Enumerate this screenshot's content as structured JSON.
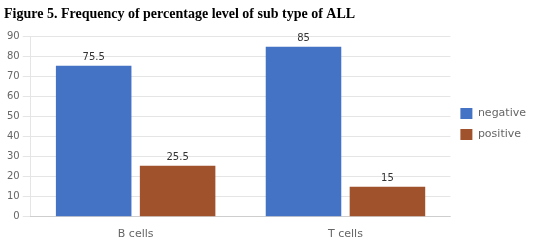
{
  "chart_data": {
    "type": "bar",
    "title": "Figure 5. Frequency of percentage level of sub type of ALL",
    "categories": [
      "B cells",
      "T cells"
    ],
    "series": [
      {
        "name": "negative",
        "color": "#4472C4",
        "values": [
          75.5,
          85
        ]
      },
      {
        "name": "positive",
        "color": "#A0522D",
        "values": [
          25.5,
          15
        ]
      }
    ],
    "ylim": [
      0,
      90
    ],
    "yticks": [
      0,
      10,
      20,
      30,
      40,
      50,
      60,
      70,
      80,
      90
    ],
    "grid": true,
    "legend": "right",
    "data_labels": true
  }
}
